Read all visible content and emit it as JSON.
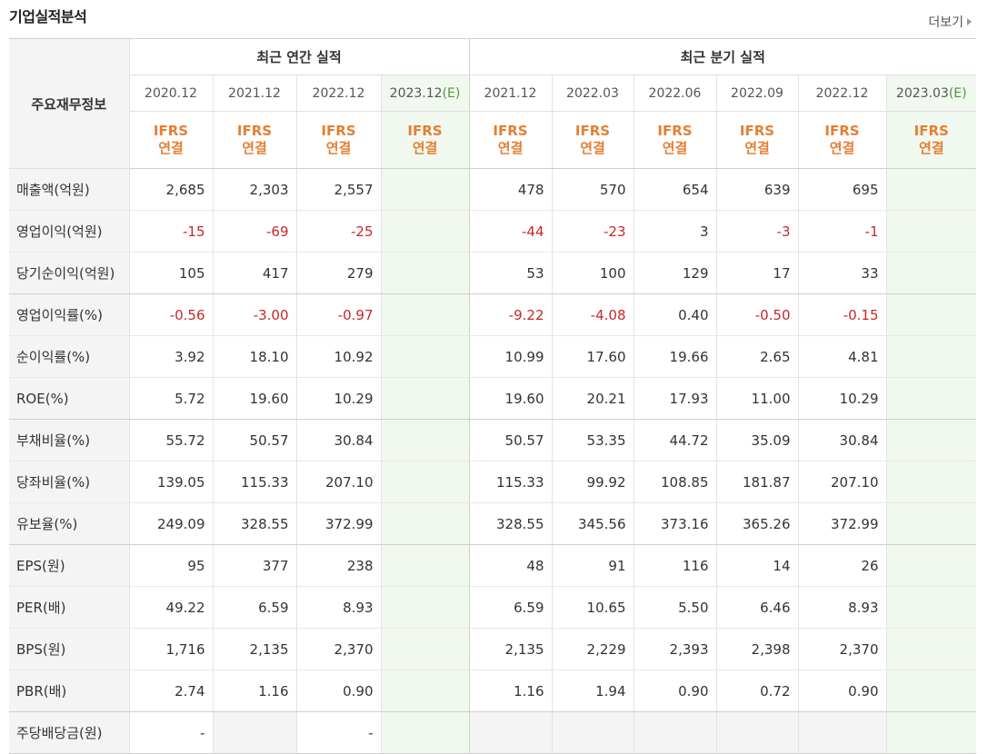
{
  "title": "기업실적분석",
  "more_label": "더보기",
  "header": {
    "row_label": "주요재무정보",
    "annual_group": "최근 연간 실적",
    "quarter_group": "최근 분기 실적",
    "annual_periods": [
      {
        "label": "2020.12",
        "est": ""
      },
      {
        "label": "2021.12",
        "est": ""
      },
      {
        "label": "2022.12",
        "est": ""
      },
      {
        "label": "2023.12",
        "est": "(E)"
      }
    ],
    "quarter_periods": [
      {
        "label": "2021.12",
        "est": ""
      },
      {
        "label": "2022.03",
        "est": ""
      },
      {
        "label": "2022.06",
        "est": ""
      },
      {
        "label": "2022.09",
        "est": ""
      },
      {
        "label": "2022.12",
        "est": ""
      },
      {
        "label": "2023.03",
        "est": "(E)"
      }
    ],
    "standard_line1": "IFRS",
    "standard_line2": "연결"
  },
  "rows": [
    {
      "label": "매출액(억원)",
      "annual": [
        "2,685",
        "2,303",
        "2,557",
        ""
      ],
      "quarter": [
        "478",
        "570",
        "654",
        "639",
        "695",
        ""
      ]
    },
    {
      "label": "영업이익(억원)",
      "annual": [
        "-15",
        "-69",
        "-25",
        ""
      ],
      "quarter": [
        "-44",
        "-23",
        "3",
        "-3",
        "-1",
        ""
      ]
    },
    {
      "label": "당기순이익(억원)",
      "annual": [
        "105",
        "417",
        "279",
        ""
      ],
      "quarter": [
        "53",
        "100",
        "129",
        "17",
        "33",
        ""
      ]
    },
    {
      "label": "영업이익률(%)",
      "annual": [
        "-0.56",
        "-3.00",
        "-0.97",
        ""
      ],
      "quarter": [
        "-9.22",
        "-4.08",
        "0.40",
        "-0.50",
        "-0.15",
        ""
      ]
    },
    {
      "label": "순이익률(%)",
      "annual": [
        "3.92",
        "18.10",
        "10.92",
        ""
      ],
      "quarter": [
        "10.99",
        "17.60",
        "19.66",
        "2.65",
        "4.81",
        ""
      ]
    },
    {
      "label": "ROE(%)",
      "annual": [
        "5.72",
        "19.60",
        "10.29",
        ""
      ],
      "quarter": [
        "19.60",
        "20.21",
        "17.93",
        "11.00",
        "10.29",
        ""
      ]
    },
    {
      "label": "부채비율(%)",
      "annual": [
        "55.72",
        "50.57",
        "30.84",
        ""
      ],
      "quarter": [
        "50.57",
        "53.35",
        "44.72",
        "35.09",
        "30.84",
        ""
      ]
    },
    {
      "label": "당좌비율(%)",
      "annual": [
        "139.05",
        "115.33",
        "207.10",
        ""
      ],
      "quarter": [
        "115.33",
        "99.92",
        "108.85",
        "181.87",
        "207.10",
        ""
      ]
    },
    {
      "label": "유보율(%)",
      "annual": [
        "249.09",
        "328.55",
        "372.99",
        ""
      ],
      "quarter": [
        "328.55",
        "345.56",
        "373.16",
        "365.26",
        "372.99",
        ""
      ]
    },
    {
      "label": "EPS(원)",
      "annual": [
        "95",
        "377",
        "238",
        ""
      ],
      "quarter": [
        "48",
        "91",
        "116",
        "14",
        "26",
        ""
      ]
    },
    {
      "label": "PER(배)",
      "annual": [
        "49.22",
        "6.59",
        "8.93",
        ""
      ],
      "quarter": [
        "6.59",
        "10.65",
        "5.50",
        "6.46",
        "8.93",
        ""
      ]
    },
    {
      "label": "BPS(원)",
      "annual": [
        "1,716",
        "2,135",
        "2,370",
        ""
      ],
      "quarter": [
        "2,135",
        "2,229",
        "2,393",
        "2,398",
        "2,370",
        ""
      ]
    },
    {
      "label": "PBR(배)",
      "annual": [
        "2.74",
        "1.16",
        "0.90",
        ""
      ],
      "quarter": [
        "1.16",
        "1.94",
        "0.90",
        "0.72",
        "0.90",
        ""
      ]
    },
    {
      "label": "주당배당금(원)",
      "annual": [
        "-",
        "",
        "-",
        ""
      ],
      "quarter": [
        "",
        "",
        "",
        "",
        "",
        ""
      ]
    }
  ],
  "colors": {
    "negative": "#c62828",
    "estimate_bg": "#f1f8ef",
    "label_bg": "#f4f4f4",
    "ifrs_orange": "#e57f32",
    "estimate_mark": "#4a9a3a"
  }
}
